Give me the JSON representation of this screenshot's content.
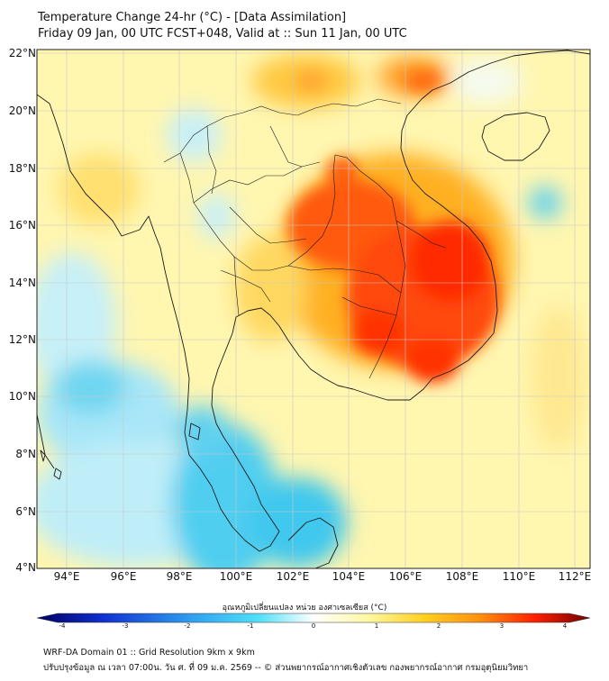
{
  "title": {
    "line1": "Temperature Change 24-hr (°C) - [Data Assimilation]",
    "line2": "Friday 09 Jan, 00 UTC FCST+048, Valid at :: Sun 11 Jan, 00 UTC"
  },
  "axes": {
    "lat_labels": [
      "22°N",
      "20°N",
      "18°N",
      "16°N",
      "14°N",
      "12°N",
      "10°N",
      "8°N",
      "6°N",
      "4°N"
    ],
    "lon_labels": [
      "94°E",
      "96°E",
      "98°E",
      "100°E",
      "102°E",
      "104°E",
      "106°E",
      "108°E",
      "110°E",
      "112°E"
    ]
  },
  "colorbar": {
    "title": "อุณหภูมิเปลี่ยนแปลง หน่วย องศาเซลเซียส (°C)",
    "ticks": [
      "-4",
      "-3",
      "-2",
      "-1",
      "0",
      "1",
      "2",
      "3",
      "4"
    ]
  },
  "footer": {
    "line1": "WRF-DA Domain 01 :: Grid Resolution 9km x 9km",
    "line2": "ปรับปรุงข้อมูล ณ เวลา 07:00น. วัน ศ. ที่ 09 ม.ค. 2569 -- © ส่วนพยากรณ์อากาศเชิงตัวเลข กองพยากรณ์อากาศ กรมอุตุนิยมวิทยา"
  },
  "colors": {
    "warm_peak": "#ff2a00",
    "warm": "#ffd020",
    "neutral": "#ffffd0",
    "cool": "#30d0f0",
    "cold": "#000080"
  }
}
